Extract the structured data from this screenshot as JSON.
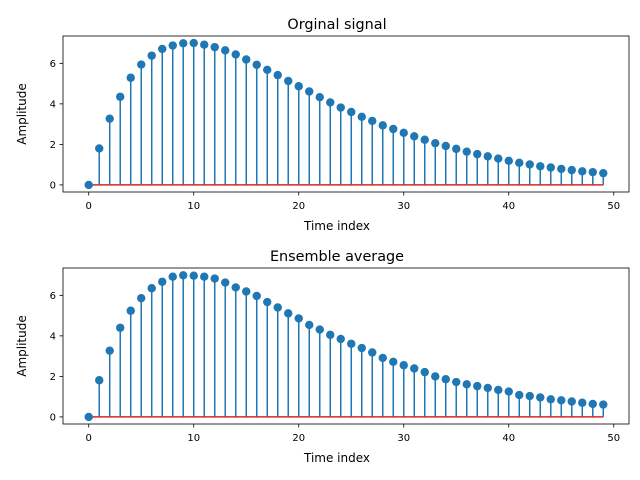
{
  "chart_data": [
    {
      "type": "stem",
      "title": "Orginal signal",
      "xlabel": "Time index",
      "ylabel": "Amplitude",
      "xlim": [
        -2.45,
        51.45
      ],
      "ylim": [
        -0.35,
        7.35
      ],
      "xticks": [
        0,
        10,
        20,
        30,
        40,
        50
      ],
      "yticks": [
        0,
        2,
        4,
        6
      ],
      "colors": {
        "stem": "#1f77b4",
        "baseline": "#d62728"
      },
      "x": [
        0,
        1,
        2,
        3,
        4,
        5,
        6,
        7,
        8,
        9,
        10,
        11,
        12,
        13,
        14,
        15,
        16,
        17,
        18,
        19,
        20,
        21,
        22,
        23,
        24,
        25,
        26,
        27,
        28,
        29,
        30,
        31,
        32,
        33,
        34,
        35,
        36,
        37,
        38,
        39,
        40,
        41,
        42,
        43,
        44,
        45,
        46,
        47,
        48,
        49
      ],
      "y": [
        0.0,
        1.8,
        3.27,
        4.35,
        5.29,
        5.94,
        6.38,
        6.71,
        6.88,
        6.99,
        7.0,
        6.92,
        6.8,
        6.64,
        6.44,
        6.19,
        5.93,
        5.68,
        5.42,
        5.13,
        4.87,
        4.61,
        4.33,
        4.07,
        3.82,
        3.6,
        3.36,
        3.16,
        2.94,
        2.76,
        2.57,
        2.4,
        2.23,
        2.06,
        1.92,
        1.78,
        1.64,
        1.52,
        1.41,
        1.3,
        1.19,
        1.09,
        1.01,
        0.92,
        0.86,
        0.79,
        0.73,
        0.67,
        0.63,
        0.58
      ]
    },
    {
      "type": "stem",
      "title": "Ensemble average",
      "xlabel": "Time index",
      "ylabel": "Amplitude",
      "xlim": [
        -2.45,
        51.45
      ],
      "ylim": [
        -0.35,
        7.35
      ],
      "xticks": [
        0,
        10,
        20,
        30,
        40,
        50
      ],
      "yticks": [
        0,
        2,
        4,
        6
      ],
      "colors": {
        "stem": "#1f77b4",
        "baseline": "#d62728"
      },
      "x": [
        0,
        1,
        2,
        3,
        4,
        5,
        6,
        7,
        8,
        9,
        10,
        11,
        12,
        13,
        14,
        15,
        16,
        17,
        18,
        19,
        20,
        21,
        22,
        23,
        24,
        25,
        26,
        27,
        28,
        29,
        30,
        31,
        32,
        33,
        34,
        35,
        36,
        37,
        38,
        39,
        40,
        41,
        42,
        43,
        44,
        45,
        46,
        47,
        48,
        49
      ],
      "y": [
        0.0,
        1.81,
        3.27,
        4.4,
        5.24,
        5.86,
        6.35,
        6.67,
        6.92,
        6.99,
        6.97,
        6.92,
        6.83,
        6.63,
        6.39,
        6.19,
        5.97,
        5.67,
        5.4,
        5.11,
        4.86,
        4.54,
        4.31,
        4.05,
        3.85,
        3.61,
        3.4,
        3.18,
        2.91,
        2.72,
        2.55,
        2.39,
        2.21,
        2.0,
        1.86,
        1.72,
        1.61,
        1.52,
        1.43,
        1.33,
        1.25,
        1.08,
        1.03,
        0.96,
        0.87,
        0.82,
        0.76,
        0.7,
        0.64,
        0.61
      ]
    }
  ]
}
